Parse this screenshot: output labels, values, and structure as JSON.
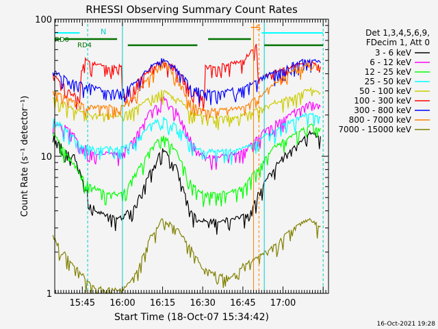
{
  "chart_data": {
    "type": "line",
    "title": "RHESSI Observing Summary Count Rates",
    "xlabel": "Start Time (18-Oct-07 15:34:42)",
    "ylabel": "Count Rate (s⁻¹ detector⁻¹)",
    "y_scale": "log",
    "ylim": [
      1,
      100
    ],
    "xlim": [
      "15:34:42",
      "17:17:00"
    ],
    "x_ticks": [
      "15:45",
      "16:00",
      "16:15",
      "16:30",
      "16:45",
      "17:00"
    ],
    "y_ticks": [
      "1",
      "10",
      "100"
    ],
    "grid": false,
    "legend_position": "right",
    "legend_header": [
      "Det 1,3,4,5,6,9,",
      "FDecim 1, Att 0"
    ],
    "annotations": {
      "night_label": "N",
      "saa_label": "S",
      "decim_labels": [
        "RD0",
        "RD4"
      ],
      "timestamp": "16-Oct-2021 19:28"
    },
    "series": [
      {
        "name": "3 - 6 keV",
        "color": "#000000",
        "x": [
          "15:34",
          "15:42",
          "15:46",
          "15:50",
          "15:54",
          "15:57",
          "16:00",
          "16:05",
          "16:10",
          "16:15",
          "16:20",
          "16:25",
          "16:28",
          "16:30",
          "16:33",
          "16:36",
          "16:40",
          "16:44",
          "16:48",
          "16:51",
          "16:55",
          "17:00",
          "17:05",
          "17:10",
          "17:14"
        ],
        "values": [
          14,
          10,
          6,
          4,
          3.7,
          3.6,
          3.6,
          4.5,
          7.5,
          11.5,
          8.5,
          4.2,
          3.5,
          3.4,
          3.4,
          3.4,
          3.5,
          3.6,
          4.0,
          5.5,
          7.5,
          10,
          12,
          15,
          14
        ]
      },
      {
        "name": "6 - 12 keV",
        "color": "#ff00ff",
        "x": [
          "15:34",
          "15:40",
          "15:45",
          "15:50",
          "15:55",
          "16:00",
          "16:05",
          "16:10",
          "16:15",
          "16:20",
          "16:25",
          "16:28",
          "16:31",
          "16:35",
          "16:40",
          "16:45",
          "16:51",
          "16:55",
          "17:00",
          "17:05",
          "17:10",
          "17:14"
        ],
        "values": [
          18,
          16,
          12,
          10.5,
          10.5,
          10.5,
          14,
          21,
          27,
          22,
          14,
          11,
          10,
          10,
          10.2,
          11,
          14,
          17,
          19,
          22,
          25,
          23
        ]
      },
      {
        "name": "12 - 25 keV",
        "color": "#00ff00",
        "x": [
          "15:34",
          "15:40",
          "15:45",
          "15:50",
          "15:55",
          "16:00",
          "16:05",
          "16:10",
          "16:15",
          "16:20",
          "16:25",
          "16:28",
          "16:31",
          "16:35",
          "16:40",
          "16:45",
          "16:51",
          "16:55",
          "17:00",
          "17:05",
          "17:10",
          "17:14"
        ],
        "values": [
          15,
          10,
          7,
          5.8,
          5.4,
          5.4,
          7.5,
          11,
          14.5,
          11,
          7,
          5.6,
          5.4,
          5.4,
          5.5,
          6,
          8.5,
          11,
          13,
          15,
          17,
          16
        ]
      },
      {
        "name": "25 - 50 keV",
        "color": "#00ffff",
        "x": [
          "15:34",
          "15:40",
          "15:45",
          "15:50",
          "15:55",
          "16:00",
          "16:05",
          "16:10",
          "16:15",
          "16:20",
          "16:25",
          "16:28",
          "16:31",
          "16:35",
          "16:40",
          "16:45",
          "16:51",
          "16:55",
          "17:00",
          "17:05",
          "17:10",
          "17:14"
        ],
        "values": [
          19,
          15,
          12,
          11.5,
          11.5,
          11.5,
          13,
          17,
          19,
          17,
          13,
          11.5,
          11,
          11,
          11,
          11.5,
          13,
          15,
          17,
          19,
          21,
          19
        ]
      },
      {
        "name": "50 - 100 keV",
        "color": "#cccc00",
        "x": [
          "15:34",
          "15:40",
          "15:45",
          "15:50",
          "15:55",
          "16:00",
          "16:05",
          "16:10",
          "16:15",
          "16:20",
          "16:25",
          "16:28",
          "16:31",
          "16:35",
          "16:40",
          "16:45",
          "16:51",
          "16:55",
          "17:00",
          "17:05",
          "17:10",
          "17:14"
        ],
        "values": [
          27,
          23,
          21,
          20,
          20,
          20,
          23,
          27,
          30,
          27,
          22,
          20,
          19.5,
          19.5,
          19.5,
          20,
          22,
          24,
          26,
          28,
          31,
          29
        ]
      },
      {
        "name": "100 - 300 keV",
        "color": "#ff0000",
        "x": [
          "15:34",
          "15:40",
          "15:44",
          "15:45",
          "15:50",
          "15:55",
          "16:00",
          "16:00",
          "16:05",
          "16:10",
          "16:15",
          "16:20",
          "16:25",
          "16:28",
          "16:31",
          "16:31",
          "16:35",
          "16:40",
          "16:45",
          "16:48",
          "16:50",
          "16:51",
          "16:55",
          "17:00",
          "17:05",
          "17:10",
          "17:14"
        ],
        "values": [
          40,
          30,
          27,
          52,
          47,
          45,
          46,
          27,
          34,
          44,
          50,
          44,
          33,
          28,
          27,
          45,
          46,
          47,
          50,
          58,
          65,
          36,
          40,
          43,
          47,
          50,
          45
        ]
      },
      {
        "name": "300 - 800 keV",
        "color": "#0000ff",
        "x": [
          "15:34",
          "15:40",
          "15:45",
          "15:50",
          "15:55",
          "16:00",
          "16:05",
          "16:10",
          "16:15",
          "16:20",
          "16:25",
          "16:28",
          "16:31",
          "16:35",
          "16:40",
          "16:45",
          "16:51",
          "16:55",
          "17:00",
          "17:05",
          "17:10",
          "17:14"
        ],
        "values": [
          42,
          36,
          34,
          32,
          30,
          30,
          35,
          44,
          52,
          44,
          34,
          31,
          30,
          30,
          30.5,
          32,
          36,
          40,
          44,
          48,
          52,
          48
        ]
      },
      {
        "name": "800 - 7000 keV",
        "color": "#ff8000",
        "x": [
          "15:34",
          "15:40",
          "15:45",
          "15:50",
          "15:55",
          "16:00",
          "16:05",
          "16:10",
          "16:15",
          "16:20",
          "16:25",
          "16:28",
          "16:31",
          "16:35",
          "16:40",
          "16:45",
          "16:51",
          "16:55",
          "17:00",
          "17:05",
          "17:10",
          "17:14"
        ],
        "values": [
          30,
          26,
          24,
          23,
          23,
          23,
          28,
          39,
          49,
          39,
          26,
          23,
          22,
          22,
          22,
          23,
          27,
          32,
          38,
          44,
          48,
          43
        ]
      },
      {
        "name": "7000 - 15000 keV",
        "color": "#808000",
        "x": [
          "15:34",
          "15:38",
          "15:42",
          "15:46",
          "15:50",
          "16:00",
          "16:05",
          "16:10",
          "16:15",
          "16:20",
          "16:25",
          "16:30",
          "16:40",
          "16:45",
          "16:50",
          "16:55",
          "17:00",
          "17:05",
          "17:10",
          "17:14"
        ],
        "values": [
          2.6,
          2,
          1.6,
          1.3,
          1.1,
          1.05,
          1.4,
          2.5,
          3.5,
          3,
          2.3,
          1.5,
          1.3,
          1.6,
          1.8,
          2.1,
          2.6,
          3.1,
          3.5,
          3.1
        ]
      }
    ]
  }
}
